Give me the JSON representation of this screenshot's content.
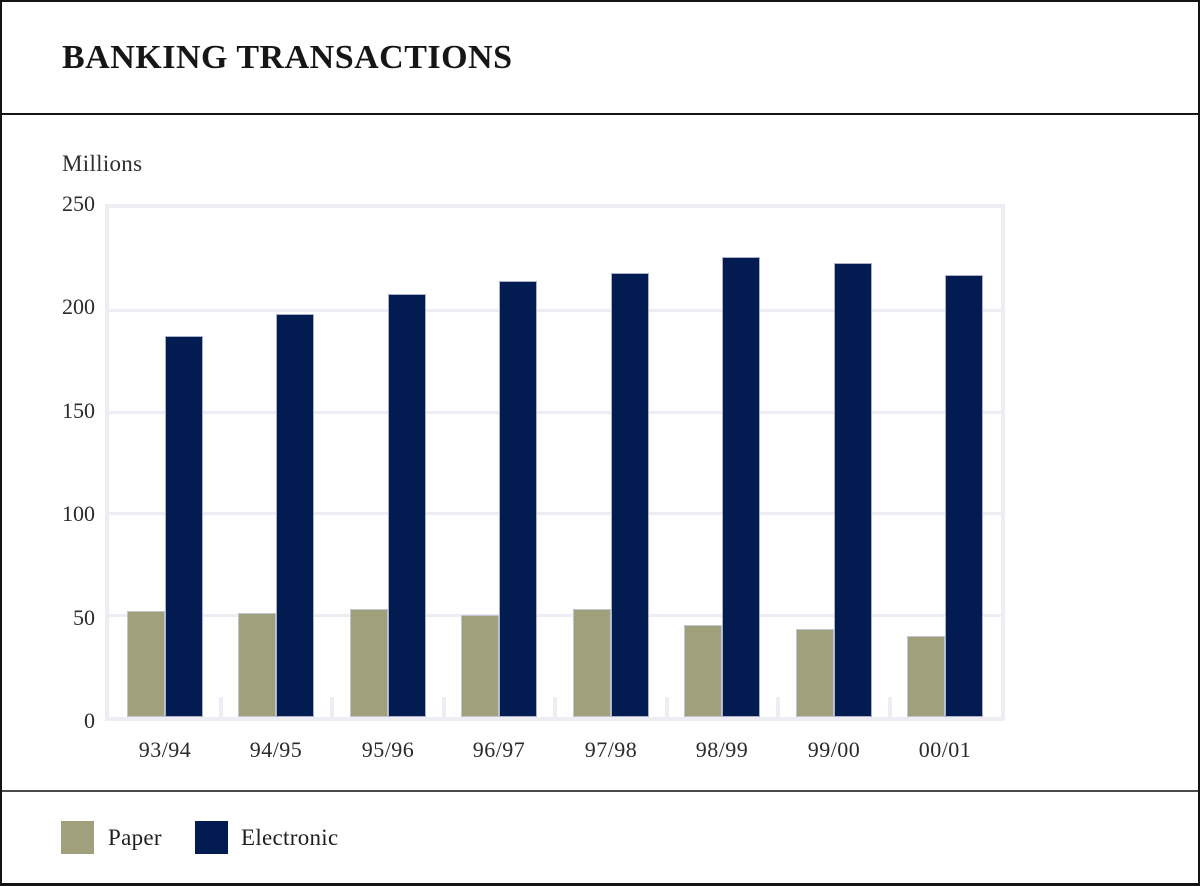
{
  "header": {
    "title": "BANKING TRANSACTIONS"
  },
  "chart_data": {
    "type": "bar",
    "title": "BANKING TRANSACTIONS",
    "ylabel": "Millions",
    "xlabel": "",
    "ylim": [
      0,
      250
    ],
    "yticks": [
      0,
      50,
      100,
      150,
      200,
      250
    ],
    "grid": true,
    "legend_position": "bottom",
    "categories": [
      "93/94",
      "94/95",
      "95/96",
      "96/97",
      "97/98",
      "98/99",
      "99/00",
      "00/01"
    ],
    "series": [
      {
        "name": "Paper",
        "color": "#A0A17C",
        "values": [
          52,
          51,
          53,
          50,
          53,
          45,
          43,
          40
        ]
      },
      {
        "name": "Electronic",
        "color": "#021C52",
        "values": [
          187,
          198,
          208,
          214,
          218,
          226,
          223,
          217
        ]
      }
    ]
  },
  "legend": {
    "items": [
      {
        "label": "Paper",
        "color": "#A0A17C"
      },
      {
        "label": "Electronic",
        "color": "#021C52"
      }
    ]
  },
  "colors": {
    "gridline": "#EDEDF3",
    "border": "#141414",
    "text": "#2b2b2b"
  }
}
